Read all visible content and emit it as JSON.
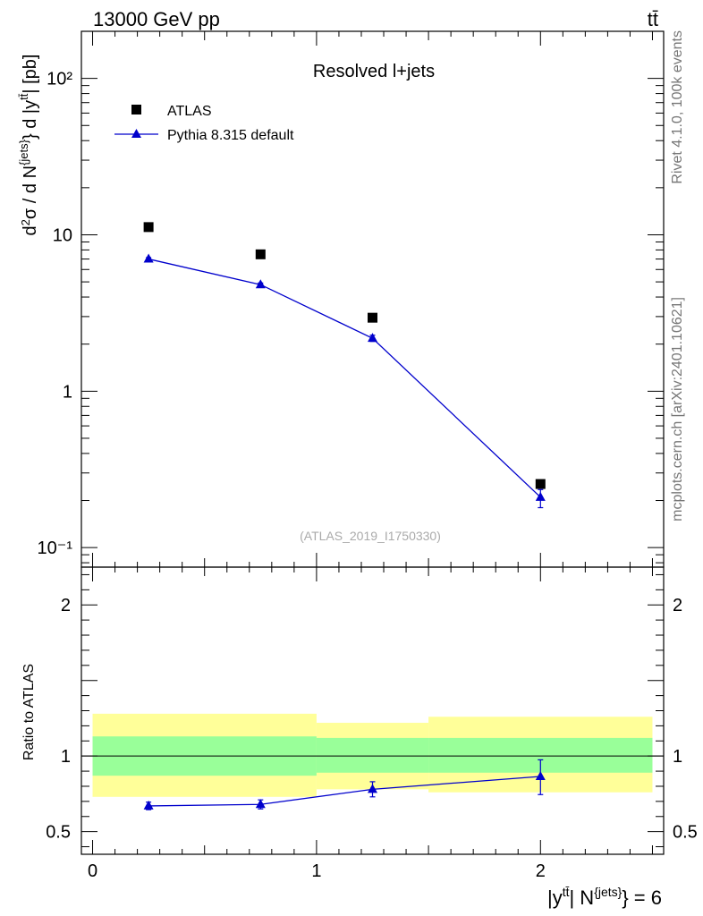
{
  "header": {
    "left": "13000 GeV pp",
    "right": "tt̄"
  },
  "side_texts": {
    "upper": "Rivet 4.1.0,  100k events",
    "lower": "mcplots.cern.ch [arXiv:2401.10621]"
  },
  "chart_data": [
    {
      "type": "scatter",
      "panel": "main",
      "title": "Resolved l+jets",
      "watermark": "(ATLAS_2019_I1750330)",
      "ylabel": "d²σ / d N^{jets} d |y^{tt̄}| [pb]",
      "yscale": "log",
      "ylim": [
        0.075,
        200
      ],
      "xlim": [
        -0.05,
        2.55
      ],
      "ytick_labels": [
        "10⁻¹",
        "1",
        "10",
        "10²"
      ],
      "legend_position": "top-left",
      "series": [
        {
          "name": "ATLAS",
          "marker": "square",
          "color": "#000000",
          "x": [
            0.25,
            0.75,
            1.25,
            2.0
          ],
          "y": [
            11.2,
            7.5,
            2.95,
            0.255
          ]
        },
        {
          "name": "Pythia 8.315 default",
          "marker": "triangle",
          "color": "#0000cc",
          "x": [
            0.25,
            0.75,
            1.25,
            2.0
          ],
          "y": [
            7.0,
            4.8,
            2.18,
            0.21
          ],
          "err_lo": [
            0.15,
            0.12,
            0.1,
            0.03
          ],
          "err_hi": [
            0.15,
            0.12,
            0.1,
            0.025
          ]
        }
      ]
    },
    {
      "type": "scatter",
      "panel": "ratio",
      "ylabel": "Ratio to ATLAS",
      "xlabel": "|y^{tt̄}| N^{jets} = 6",
      "ylim": [
        0.35,
        2.25
      ],
      "xlim": [
        -0.05,
        2.55
      ],
      "xtick_labels": [
        "0",
        "1",
        "2"
      ],
      "ytick_labels": [
        "0.5",
        "1",
        "2"
      ],
      "reference_line": 1,
      "bands": [
        {
          "name": "stat+syst",
          "color": "#ffff99",
          "bins": [
            [
              0,
              1,
              0.73,
              1.28
            ],
            [
              1,
              1.5,
              0.78,
              1.22
            ],
            [
              1.5,
              2.5,
              0.76,
              1.26
            ]
          ]
        },
        {
          "name": "stat",
          "color": "#99ff99",
          "bins": [
            [
              0,
              1,
              0.87,
              1.13
            ],
            [
              1,
              1.5,
              0.89,
              1.12
            ],
            [
              1.5,
              2.5,
              0.89,
              1.12
            ]
          ]
        }
      ],
      "series": [
        {
          "name": "Pythia 8.315 default",
          "marker": "triangle",
          "color": "#0000cc",
          "x": [
            0.25,
            0.75,
            1.25,
            2.0
          ],
          "y": [
            0.67,
            0.68,
            0.78,
            0.865
          ],
          "err_lo": [
            0.025,
            0.03,
            0.05,
            0.12
          ],
          "err_hi": [
            0.025,
            0.03,
            0.05,
            0.11
          ]
        }
      ]
    }
  ]
}
